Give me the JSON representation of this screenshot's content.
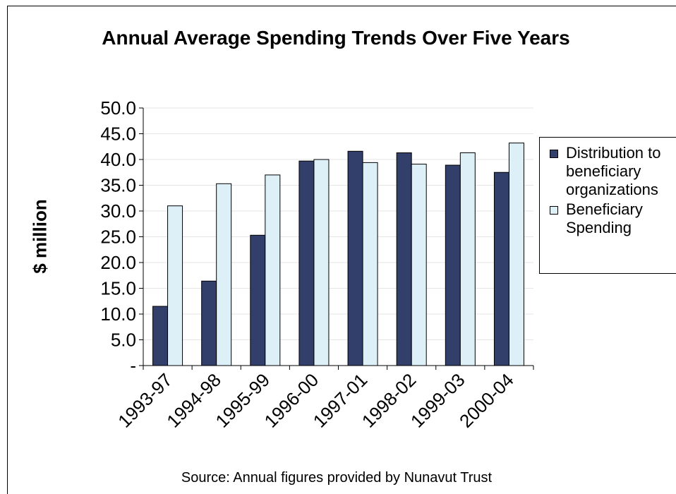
{
  "chart_data": {
    "type": "bar",
    "title": "Annual Average Spending Trends Over Five Years",
    "ylabel": "$ million",
    "xlabel": "",
    "ylim": [
      0,
      50
    ],
    "yticks": [
      "-",
      "5.0",
      "10.0",
      "15.0",
      "20.0",
      "25.0",
      "30.0",
      "35.0",
      "40.0",
      "45.0",
      "50.0"
    ],
    "categories": [
      "1993-97",
      "1994-98",
      "1995-99",
      "1996-00",
      "1997-01",
      "1998-02",
      "1999-03",
      "2000-04"
    ],
    "series": [
      {
        "name": "Distribution to beneficiary organizations",
        "color": "#333f6b",
        "values": [
          11.5,
          16.4,
          25.3,
          39.7,
          41.6,
          41.3,
          38.9,
          37.5
        ]
      },
      {
        "name": "Beneficiary Spending",
        "color": "#ddf0f8",
        "values": [
          31.0,
          35.3,
          37.0,
          40.0,
          39.4,
          39.1,
          41.3,
          43.2
        ]
      }
    ],
    "grid": true,
    "legend": "right",
    "source": "Source: Annual figures provided by Nunavut Trust"
  }
}
